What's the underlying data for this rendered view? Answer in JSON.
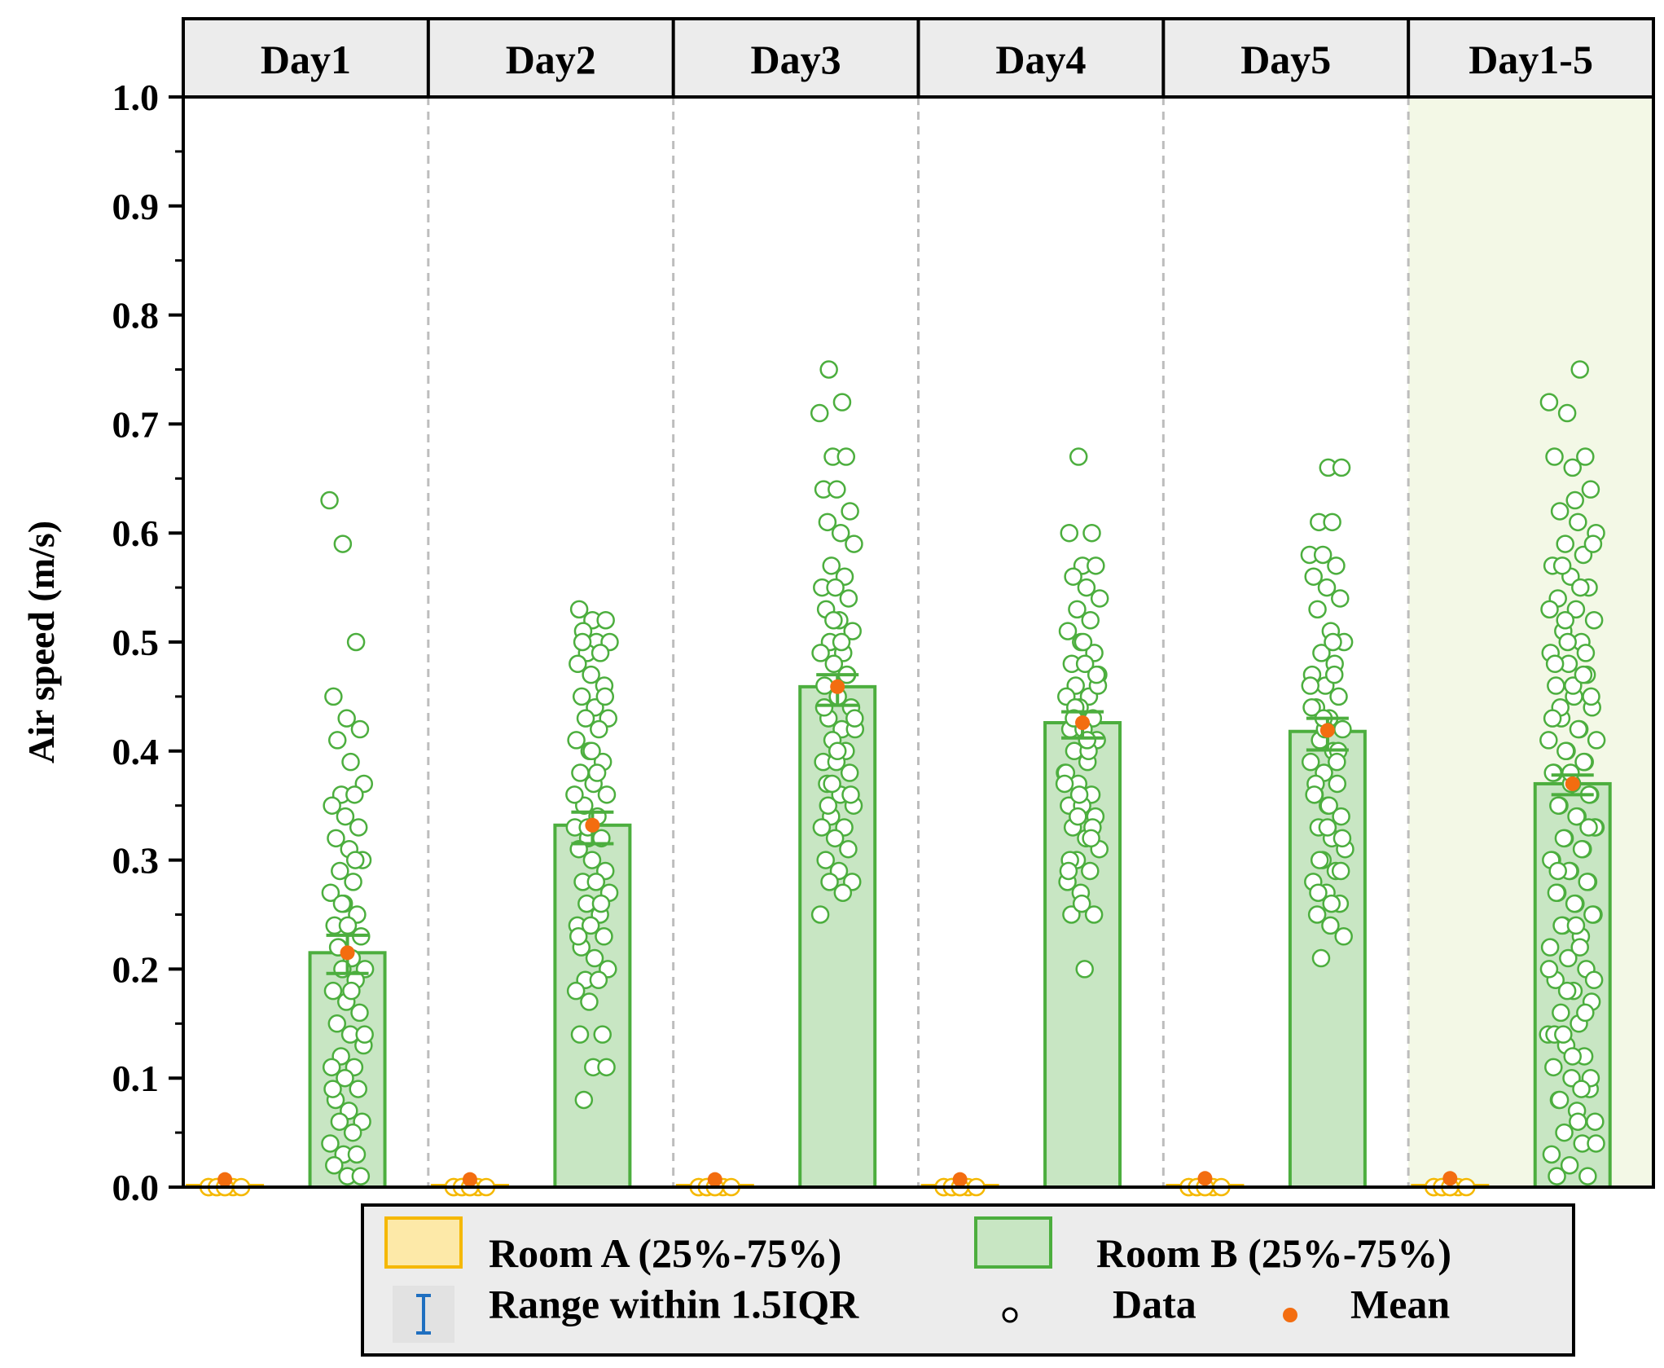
{
  "chart_data": {
    "type": "bar",
    "ylabel": "Air speed (m/s)",
    "ylim": [
      0.0,
      1.0
    ],
    "yticks": [
      "0.0",
      "0.1",
      "0.2",
      "0.3",
      "0.4",
      "0.5",
      "0.6",
      "0.7",
      "0.8",
      "0.9",
      "1.0"
    ],
    "panels": [
      "Day1",
      "Day2",
      "Day3",
      "Day4",
      "Day5",
      "Day1-5"
    ],
    "highlight_panel": "Day1-5",
    "series": [
      {
        "name": "Room A (25%-75%)",
        "bar": [
          0.0,
          0.0,
          0.0,
          0.0,
          0.0,
          0.0
        ],
        "mean": [
          0.007,
          0.007,
          0.007,
          0.007,
          0.008,
          0.008
        ],
        "error": [
          [
            0.0,
            0.0
          ],
          [
            0.0,
            0.0
          ],
          [
            0.0,
            0.0
          ],
          [
            0.0,
            0.0
          ],
          [
            0.0,
            0.0
          ],
          [
            0.0,
            0.0
          ]
        ],
        "data": [
          [
            0.0,
            0.0,
            0.0,
            0.0,
            0.0,
            0.0,
            0.0,
            0.0
          ],
          [
            0.0,
            0.0,
            0.0,
            0.0,
            0.0,
            0.0,
            0.0,
            0.0
          ],
          [
            0.0,
            0.0,
            0.0,
            0.0,
            0.0,
            0.0,
            0.0,
            0.0
          ],
          [
            0.0,
            0.0,
            0.0,
            0.0,
            0.0,
            0.0,
            0.0,
            0.0
          ],
          [
            0.0,
            0.0,
            0.0,
            0.0,
            0.0,
            0.0,
            0.0,
            0.0
          ],
          [
            0.0,
            0.0,
            0.0,
            0.0,
            0.0,
            0.0,
            0.0,
            0.0
          ]
        ]
      },
      {
        "name": "Room B (25%-75%)",
        "bar": [
          0.215,
          0.332,
          0.459,
          0.426,
          0.418,
          0.37
        ],
        "mean": [
          0.215,
          0.332,
          0.459,
          0.426,
          0.419,
          0.37
        ],
        "error": [
          [
            0.196,
            0.231
          ],
          [
            0.315,
            0.344
          ],
          [
            0.442,
            0.47
          ],
          [
            0.412,
            0.436
          ],
          [
            0.401,
            0.43
          ],
          [
            0.36,
            0.378
          ]
        ],
        "data": [
          [
            0.63,
            0.59,
            0.5,
            0.45,
            0.43,
            0.42,
            0.41,
            0.39,
            0.37,
            0.36,
            0.36,
            0.35,
            0.34,
            0.33,
            0.32,
            0.31,
            0.3,
            0.29,
            0.28,
            0.27,
            0.26,
            0.25,
            0.24,
            0.24,
            0.23,
            0.22,
            0.21,
            0.2,
            0.2,
            0.19,
            0.18,
            0.17,
            0.16,
            0.15,
            0.14,
            0.13,
            0.12,
            0.11,
            0.11,
            0.1,
            0.09,
            0.08,
            0.07,
            0.06,
            0.06,
            0.05,
            0.04,
            0.03,
            0.03,
            0.02,
            0.01,
            0.01,
            0.22,
            0.18,
            0.14,
            0.26,
            0.3,
            0.09
          ],
          [
            0.53,
            0.52,
            0.52,
            0.51,
            0.5,
            0.5,
            0.49,
            0.49,
            0.48,
            0.47,
            0.46,
            0.45,
            0.44,
            0.43,
            0.43,
            0.42,
            0.41,
            0.4,
            0.39,
            0.38,
            0.37,
            0.36,
            0.35,
            0.34,
            0.33,
            0.32,
            0.32,
            0.31,
            0.3,
            0.29,
            0.28,
            0.28,
            0.27,
            0.26,
            0.25,
            0.24,
            0.24,
            0.23,
            0.22,
            0.21,
            0.2,
            0.19,
            0.19,
            0.18,
            0.17,
            0.14,
            0.14,
            0.11,
            0.11,
            0.08,
            0.38,
            0.36,
            0.33,
            0.26,
            0.23,
            0.4,
            0.45,
            0.5
          ],
          [
            0.75,
            0.72,
            0.71,
            0.67,
            0.67,
            0.64,
            0.64,
            0.62,
            0.61,
            0.6,
            0.59,
            0.57,
            0.56,
            0.55,
            0.55,
            0.54,
            0.53,
            0.52,
            0.51,
            0.5,
            0.49,
            0.49,
            0.48,
            0.47,
            0.46,
            0.45,
            0.44,
            0.43,
            0.42,
            0.42,
            0.41,
            0.4,
            0.39,
            0.39,
            0.38,
            0.37,
            0.36,
            0.35,
            0.34,
            0.33,
            0.33,
            0.32,
            0.31,
            0.3,
            0.29,
            0.28,
            0.28,
            0.27,
            0.25,
            0.52,
            0.47,
            0.44,
            0.4,
            0.36,
            0.35,
            0.5,
            0.43,
            0.37
          ],
          [
            0.67,
            0.6,
            0.6,
            0.57,
            0.57,
            0.56,
            0.55,
            0.54,
            0.53,
            0.52,
            0.51,
            0.5,
            0.49,
            0.48,
            0.48,
            0.47,
            0.46,
            0.45,
            0.45,
            0.44,
            0.43,
            0.42,
            0.42,
            0.41,
            0.4,
            0.39,
            0.38,
            0.37,
            0.36,
            0.35,
            0.35,
            0.34,
            0.33,
            0.32,
            0.31,
            0.3,
            0.29,
            0.28,
            0.27,
            0.25,
            0.25,
            0.2,
            0.46,
            0.44,
            0.4,
            0.38,
            0.36,
            0.33,
            0.3,
            0.5,
            0.47,
            0.43,
            0.41,
            0.37,
            0.34,
            0.32,
            0.29,
            0.26
          ],
          [
            0.66,
            0.66,
            0.61,
            0.61,
            0.58,
            0.58,
            0.57,
            0.56,
            0.55,
            0.54,
            0.53,
            0.51,
            0.5,
            0.49,
            0.48,
            0.47,
            0.46,
            0.45,
            0.44,
            0.43,
            0.42,
            0.41,
            0.4,
            0.39,
            0.38,
            0.37,
            0.36,
            0.35,
            0.34,
            0.33,
            0.32,
            0.31,
            0.3,
            0.29,
            0.28,
            0.27,
            0.26,
            0.25,
            0.24,
            0.23,
            0.21,
            0.47,
            0.44,
            0.42,
            0.4,
            0.37,
            0.35,
            0.32,
            0.3,
            0.5,
            0.46,
            0.43,
            0.39,
            0.36,
            0.33,
            0.29,
            0.27,
            0.26
          ],
          [
            0.75,
            0.72,
            0.71,
            0.67,
            0.67,
            0.66,
            0.64,
            0.62,
            0.61,
            0.6,
            0.59,
            0.58,
            0.57,
            0.56,
            0.55,
            0.54,
            0.53,
            0.52,
            0.51,
            0.5,
            0.49,
            0.48,
            0.47,
            0.46,
            0.45,
            0.44,
            0.43,
            0.42,
            0.41,
            0.4,
            0.39,
            0.38,
            0.37,
            0.36,
            0.35,
            0.34,
            0.33,
            0.32,
            0.31,
            0.3,
            0.29,
            0.28,
            0.27,
            0.26,
            0.25,
            0.24,
            0.23,
            0.22,
            0.21,
            0.2,
            0.19,
            0.18,
            0.17,
            0.16,
            0.15,
            0.14,
            0.13,
            0.12,
            0.11,
            0.1,
            0.09,
            0.08,
            0.07,
            0.06,
            0.05,
            0.04,
            0.03,
            0.02,
            0.01,
            0.01,
            0.63,
            0.59,
            0.57,
            0.55,
            0.53,
            0.5,
            0.49,
            0.48,
            0.46,
            0.45,
            0.44,
            0.42,
            0.41,
            0.4,
            0.39,
            0.38,
            0.37,
            0.36,
            0.35,
            0.34,
            0.33,
            0.32,
            0.31,
            0.3,
            0.29,
            0.28,
            0.27,
            0.26,
            0.25,
            0.24,
            0.22,
            0.2,
            0.18,
            0.16,
            0.14,
            0.12,
            0.1,
            0.08,
            0.06,
            0.04,
            0.52,
            0.47,
            0.43,
            0.38,
            0.33,
            0.29,
            0.24,
            0.19,
            0.14,
            0.09
          ]
        ]
      }
    ],
    "legend": {
      "room_a": "Room A (25%-75%)",
      "room_b": "Room B (25%-75%)",
      "range": "Range within 1.5IQR",
      "data": "Data",
      "mean": "Mean"
    },
    "colors": {
      "room_a_fill": "#fde9a8",
      "room_a_edge": "#f5b800",
      "room_b_fill": "#c8e6c3",
      "room_b_edge": "#4cae3e",
      "data_marker": "#4cae3e",
      "mean_marker": "#f36d10",
      "range_marker": "#1f6fc0",
      "highlight_bg": "#f3f8e6",
      "header_bg": "#ececec",
      "divider": "#bdbdbd"
    }
  }
}
